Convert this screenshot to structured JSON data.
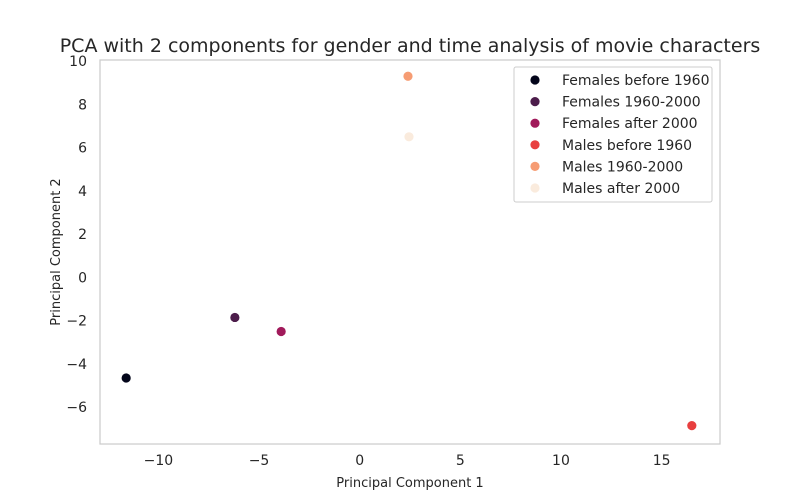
{
  "chart_data": {
    "type": "scatter",
    "title": "PCA with 2 components for gender and time analysis of movie characters",
    "xlabel": "Principal Component 1",
    "ylabel": "Principal Component 2",
    "xlim": [
      -12.9,
      17.9
    ],
    "ylim": [
      -7.7,
      10.05
    ],
    "xticks": [
      -10,
      -5,
      0,
      5,
      10,
      15
    ],
    "yticks": [
      -6,
      -4,
      -2,
      0,
      2,
      4,
      6,
      8,
      10
    ],
    "grid": false,
    "legend_position": "top-right",
    "series": [
      {
        "name": "Females before 1960",
        "color": "#03051a",
        "x": [
          -11.6
        ],
        "y": [
          -4.65
        ]
      },
      {
        "name": "Females 1960-2000",
        "color": "#4c1d4b",
        "x": [
          -6.2
        ],
        "y": [
          -1.85
        ]
      },
      {
        "name": "Females after 2000",
        "color": "#a11a5b",
        "x": [
          -3.9
        ],
        "y": [
          -2.5
        ]
      },
      {
        "name": "Males before 1960",
        "color": "#e83f3f",
        "x": [
          16.5
        ],
        "y": [
          -6.85
        ]
      },
      {
        "name": "Males 1960-2000",
        "color": "#f69c73",
        "x": [
          2.4
        ],
        "y": [
          9.3
        ]
      },
      {
        "name": "Males after 2000",
        "color": "#faebdd",
        "x": [
          2.45
        ],
        "y": [
          6.5
        ]
      }
    ]
  }
}
